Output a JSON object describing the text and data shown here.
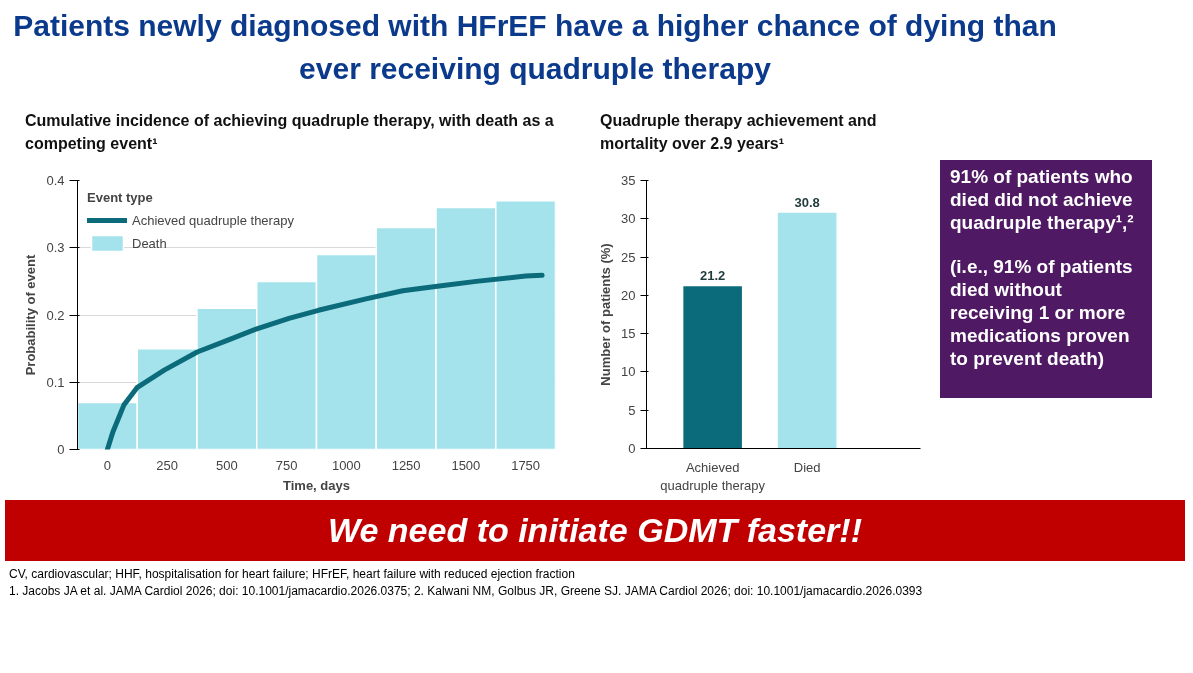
{
  "chart_data": [
    {
      "type": "line",
      "title": "Cumulative incidence of achieving quadruple therapy, with death as a competing event¹",
      "xlabel": "Time, days",
      "ylabel": "Probability of event",
      "legend_title": "Event type",
      "legend": "top left",
      "grid": "y",
      "xlim": [
        -125,
        1875
      ],
      "xticks": [
        0,
        250,
        500,
        750,
        1000,
        1250,
        1500,
        1750
      ],
      "ylim": [
        0,
        0.4
      ],
      "yticks": [
        0,
        0.1,
        0.2,
        0.3,
        0.4
      ],
      "series": [
        {
          "name": "Achieved quadruple therapy",
          "type": "line",
          "color": "#0b6b7a",
          "x": [
            0,
            23,
            69,
            124,
            238,
            376,
            499,
            622,
            760,
            883,
            1082,
            1236,
            1389,
            1543,
            1750,
            1819
          ],
          "values": [
            0,
            0.026,
            0.066,
            0.092,
            0.118,
            0.145,
            0.162,
            0.179,
            0.195,
            0.207,
            0.224,
            0.236,
            0.243,
            0.25,
            0.258,
            0.259
          ]
        },
        {
          "name": "Death",
          "type": "histogram",
          "color": "#a5e3ec",
          "bins": [
            -125,
            125,
            375,
            625,
            875,
            1125,
            1375,
            1625,
            1875
          ],
          "values": [
            0.07,
            0.15,
            0.21,
            0.25,
            0.29,
            0.33,
            0.36,
            0.37
          ]
        }
      ]
    },
    {
      "type": "bar",
      "title": "Quadruple therapy achievement and mortality over 2.9 years¹",
      "ylabel": "Number of patients (%)",
      "categories": [
        "Achieved quadruple therapy",
        "Died"
      ],
      "values": [
        21.2,
        30.8
      ],
      "colors": [
        "#0b6b7a",
        "#a5e3ec"
      ],
      "ylim": [
        0,
        35
      ],
      "yticks": [
        0,
        5,
        10,
        15,
        20,
        25,
        30,
        35
      ],
      "data_labels": true,
      "annotations": [
        "91% of patients who died did not achieve quadruple therapy¹,²",
        "(i.e., 91% of patients died without receiving 1 or more medications proven to prevent death)"
      ]
    },
    {
      "type": "other",
      "title": "Patients newly diagnosed with HFrEF have a higher chance of dying than ever receiving quadruple therapy",
      "annotations": [
        "We need to initiate GDMT faster!!",
        "CV, cardiovascular; HHF, hospitalisation for heart failure; HFrEF, heart failure with reduced ejection fraction",
        "1. Jacobs JA et al. JAMA Cardiol 2026; doi: 10.1001/jamacardio.2026.0375; 2. Kalwani NM, Golbus JR, Greene SJ. JAMA Cardiol 2026; doi: 10.1001/jamacardio.2026.0393"
      ]
    }
  ]
}
